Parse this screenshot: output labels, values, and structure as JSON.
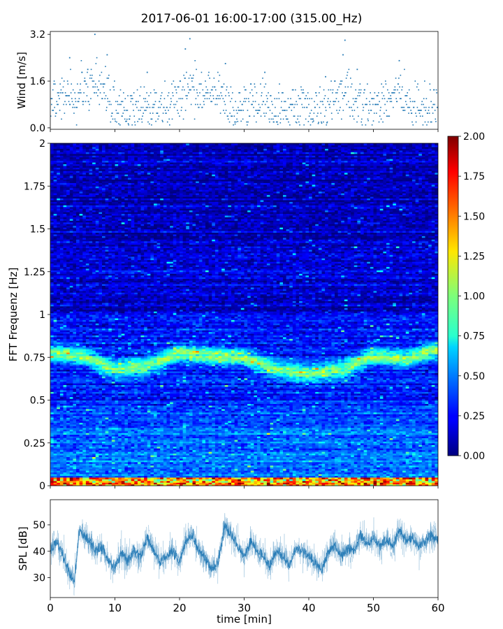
{
  "figure": {
    "title": "2017-06-01 16:00-17:00 (315.00_Hz)"
  },
  "chart_data": [
    {
      "id": "wind",
      "type": "scatter",
      "ylabel": "Wind [m/s]",
      "xlim": [
        0,
        60
      ],
      "ylim": [
        -0.05,
        3.3
      ],
      "yticks": [
        0.0,
        1.6,
        3.2
      ],
      "ytick_labels": [
        "0.0",
        "1.6",
        "3.2"
      ],
      "color": "#1f77b4",
      "marker_size": 1.2,
      "segments": [
        [
          0,
          0.8
        ],
        [
          2,
          1.1
        ],
        [
          4,
          1.0
        ],
        [
          6,
          1.5
        ],
        [
          8,
          1.4
        ],
        [
          10,
          0.7
        ],
        [
          12,
          0.5
        ],
        [
          14,
          0.7
        ],
        [
          16,
          0.6
        ],
        [
          18,
          0.8
        ],
        [
          20,
          1.0
        ],
        [
          22,
          1.4
        ],
        [
          24,
          0.9
        ],
        [
          26,
          1.2
        ],
        [
          28,
          0.6
        ],
        [
          30,
          0.7
        ],
        [
          32,
          0.9
        ],
        [
          34,
          0.7
        ],
        [
          36,
          0.6
        ],
        [
          38,
          0.8
        ],
        [
          40,
          0.8
        ],
        [
          42,
          0.4
        ],
        [
          44,
          1.0
        ],
        [
          46,
          1.3
        ],
        [
          48,
          0.9
        ],
        [
          50,
          0.7
        ],
        [
          52,
          0.9
        ],
        [
          54,
          1.2
        ],
        [
          56,
          0.6
        ],
        [
          58,
          0.7
        ],
        [
          60,
          0.8
        ]
      ],
      "peaks": [
        [
          6.9,
          3.2
        ],
        [
          21.6,
          3.05
        ],
        [
          20.9,
          2.7
        ],
        [
          45.6,
          3.0
        ],
        [
          45.3,
          2.5
        ],
        [
          54,
          2.3
        ],
        [
          27.1,
          2.2
        ],
        [
          8.8,
          2.5
        ],
        [
          3,
          2.4
        ],
        [
          15,
          1.9
        ],
        [
          5.8,
          2.0
        ],
        [
          47.5,
          2.0
        ],
        [
          33.2,
          1.9
        ],
        [
          42.6,
          1.75
        ]
      ]
    },
    {
      "id": "spectrogram",
      "type": "heatmap",
      "ylabel": "FFT Frequenz [Hz]",
      "xlim": [
        0,
        60
      ],
      "ylim": [
        0,
        2
      ],
      "yticks": [
        0,
        0.25,
        0.5,
        0.75,
        1,
        1.25,
        1.5,
        1.75,
        2
      ],
      "ytick_labels": [
        "0",
        "0.25",
        "0.5",
        "0.75",
        "1",
        "1.25",
        "1.5",
        "1.75",
        "2"
      ],
      "colormap": "jet",
      "clim": [
        0,
        2
      ],
      "colorbar_ticks": [
        0.0,
        0.25,
        0.5,
        0.75,
        1.0,
        1.25,
        1.5,
        1.75,
        2.0
      ],
      "colorbar_tick_labels": [
        "0.00",
        "0.25",
        "0.50",
        "0.75",
        "1.00",
        "1.25",
        "1.50",
        "1.75",
        "2.00"
      ],
      "band_center_hz": [
        [
          0,
          0.78
        ],
        [
          5,
          0.76
        ],
        [
          10,
          0.68
        ],
        [
          15,
          0.7
        ],
        [
          20,
          0.78
        ],
        [
          25,
          0.76
        ],
        [
          30,
          0.75
        ],
        [
          35,
          0.68
        ],
        [
          40,
          0.66
        ],
        [
          45,
          0.68
        ],
        [
          50,
          0.76
        ],
        [
          55,
          0.74
        ],
        [
          60,
          0.8
        ]
      ]
    },
    {
      "id": "spl",
      "type": "line",
      "ylabel": "SPL [dB]",
      "xlabel": "time [min]",
      "xlim": [
        0,
        60
      ],
      "ylim": [
        22.5,
        59.5
      ],
      "yticks": [
        30,
        40,
        50
      ],
      "ytick_labels": [
        "30",
        "40",
        "50"
      ],
      "xticks": [
        0,
        10,
        20,
        30,
        40,
        50,
        60
      ],
      "xtick_labels": [
        "0",
        "10",
        "20",
        "30",
        "40",
        "50",
        "60"
      ],
      "color": "#1f77b4",
      "envelope_points": [
        [
          0,
          40
        ],
        [
          1,
          44
        ],
        [
          2,
          38
        ],
        [
          3,
          32
        ],
        [
          3.7,
          28
        ],
        [
          4.5,
          48
        ],
        [
          6,
          44
        ],
        [
          7,
          40
        ],
        [
          8,
          42
        ],
        [
          9,
          36
        ],
        [
          10,
          34
        ],
        [
          11,
          40
        ],
        [
          12,
          36
        ],
        [
          13,
          40
        ],
        [
          14,
          38
        ],
        [
          15,
          45
        ],
        [
          16,
          40
        ],
        [
          17,
          36
        ],
        [
          18,
          38
        ],
        [
          19,
          40
        ],
        [
          20,
          36
        ],
        [
          21,
          44
        ],
        [
          22,
          46
        ],
        [
          23,
          40
        ],
        [
          24,
          37
        ],
        [
          25,
          33
        ],
        [
          26,
          36
        ],
        [
          27,
          50
        ],
        [
          28,
          46
        ],
        [
          29,
          42
        ],
        [
          30,
          38
        ],
        [
          31,
          44
        ],
        [
          32,
          40
        ],
        [
          33,
          38
        ],
        [
          34,
          34
        ],
        [
          35,
          40
        ],
        [
          36,
          38
        ],
        [
          37,
          35
        ],
        [
          38,
          41
        ],
        [
          39,
          40
        ],
        [
          40,
          38
        ],
        [
          41,
          36
        ],
        [
          42,
          33
        ],
        [
          43,
          40
        ],
        [
          44,
          42
        ],
        [
          45,
          38
        ],
        [
          46,
          41
        ],
        [
          47,
          40
        ],
        [
          48,
          46
        ],
        [
          49,
          43
        ],
        [
          50,
          45
        ],
        [
          51,
          42
        ],
        [
          52,
          44
        ],
        [
          53,
          42
        ],
        [
          54,
          48
        ],
        [
          55,
          44
        ],
        [
          56,
          45
        ],
        [
          57,
          42
        ],
        [
          58,
          44
        ],
        [
          59,
          46
        ],
        [
          60,
          44
        ]
      ]
    }
  ]
}
